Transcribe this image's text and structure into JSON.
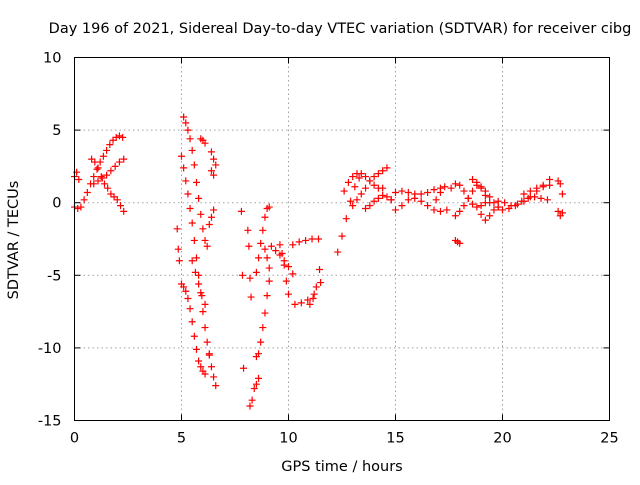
{
  "chart_data": {
    "type": "scatter",
    "title": "Day 196 of 2021, Sidereal Day-to-day VTEC variation (SDTVAR) for receiver cibg",
    "xlabel": "GPS time / hours",
    "ylabel": "SDTVAR / TECUs",
    "xlim": [
      0,
      25
    ],
    "ylim": [
      -15,
      10
    ],
    "xticks": [
      0,
      5,
      10,
      15,
      20,
      25
    ],
    "yticks": [
      -15,
      -10,
      -5,
      0,
      5,
      10
    ],
    "xtick_labels": [
      "0",
      "5",
      "10",
      "15",
      "20",
      "25"
    ],
    "ytick_labels": [
      "-15",
      "-10",
      "-5",
      "0",
      "5",
      "10"
    ],
    "grid": true,
    "marker": "+",
    "marker_color": "#ff0000",
    "segments": [
      {
        "name": "arc-a1",
        "x": [
          0.0,
          0.15,
          0.3,
          0.45,
          0.6,
          0.75,
          0.9,
          1.05,
          1.2,
          1.35,
          1.5,
          1.65,
          1.8,
          1.95,
          2.1,
          2.25
        ],
        "y": [
          -0.3,
          -0.4,
          -0.3,
          0.2,
          0.7,
          1.3,
          1.8,
          2.3,
          2.8,
          3.2,
          3.6,
          4.0,
          4.3,
          4.5,
          4.6,
          4.5
        ]
      },
      {
        "name": "arc-a2",
        "x": [
          0.0,
          0.1,
          0.2
        ],
        "y": [
          1.8,
          2.1,
          1.6
        ]
      },
      {
        "name": "arc-a3",
        "x": [
          0.8,
          0.95,
          1.1,
          1.25,
          1.4,
          1.55,
          1.7,
          1.85,
          2.0,
          2.15,
          2.3
        ],
        "y": [
          3.0,
          2.8,
          2.4,
          1.8,
          1.3,
          1.0,
          0.6,
          0.4,
          0.2,
          -0.2,
          -0.6
        ]
      },
      {
        "name": "arc-a4",
        "x": [
          0.9,
          1.1,
          1.3,
          1.5,
          1.7,
          1.9,
          2.1,
          2.3
        ],
        "y": [
          1.3,
          1.5,
          1.7,
          1.9,
          2.2,
          2.5,
          2.8,
          3.0
        ]
      },
      {
        "name": "arc-b1",
        "x": [
          4.8,
          4.85,
          4.9
        ],
        "y": [
          -1.8,
          -3.2,
          -4.0
        ]
      },
      {
        "name": "arc-b2",
        "x": [
          5.1,
          5.2,
          5.3,
          5.4,
          5.5,
          5.6,
          5.7,
          5.8,
          5.9,
          6.0,
          6.1,
          6.2
        ],
        "y": [
          5.9,
          5.5,
          5.0,
          4.4,
          3.6,
          2.6,
          1.4,
          0.3,
          -0.8,
          -1.8,
          -2.6,
          -3.0
        ]
      },
      {
        "name": "arc-b3",
        "x": [
          5.0,
          5.1,
          5.2,
          5.3,
          5.4,
          5.5,
          5.6,
          5.7,
          5.8,
          5.9,
          6.0,
          6.1,
          6.2,
          6.3
        ],
        "y": [
          3.2,
          2.4,
          1.5,
          0.6,
          -0.4,
          -1.4,
          -2.6,
          -3.8,
          -5.0,
          -6.2,
          -7.5,
          -8.6,
          -9.6,
          -10.4
        ]
      },
      {
        "name": "arc-b4",
        "x": [
          5.0,
          5.1,
          5.2,
          5.3,
          5.4,
          5.5,
          5.6,
          5.7,
          5.8,
          5.9,
          6.0,
          6.1
        ],
        "y": [
          -5.6,
          -5.8,
          -6.1,
          -6.6,
          -7.3,
          -8.2,
          -9.2,
          -10.1,
          -10.9,
          -11.3,
          -11.6,
          -11.8
        ]
      },
      {
        "name": "arc-b5",
        "x": [
          5.5,
          5.65,
          5.8,
          5.95,
          6.1
        ],
        "y": [
          -4.0,
          -4.8,
          -5.6,
          -6.4,
          -7.0
        ]
      },
      {
        "name": "arc-b6",
        "x": [
          6.3,
          6.4,
          6.5,
          6.6
        ],
        "y": [
          -10.5,
          -11.3,
          -12.0,
          -12.6
        ]
      },
      {
        "name": "arc-b7",
        "x": [
          5.9,
          6.0,
          6.1
        ],
        "y": [
          4.4,
          4.3,
          4.1
        ]
      },
      {
        "name": "arc-b8",
        "x": [
          6.4,
          6.5,
          6.6
        ],
        "y": [
          3.5,
          3.0,
          2.6
        ]
      },
      {
        "name": "arc-b9",
        "x": [
          6.4,
          6.5
        ],
        "y": [
          2.2,
          1.9
        ]
      },
      {
        "name": "arc-b10",
        "x": [
          6.3,
          6.4,
          6.5
        ],
        "y": [
          -1.5,
          -1.0,
          -0.5
        ]
      },
      {
        "name": "arc-c1",
        "x": [
          7.8,
          7.85,
          7.9
        ],
        "y": [
          -0.6,
          -5.0,
          -11.4
        ]
      },
      {
        "name": "arc-c2",
        "x": [
          8.1,
          8.15,
          8.2,
          8.25
        ],
        "y": [
          -1.9,
          -3.0,
          -5.2,
          -6.5
        ]
      },
      {
        "name": "arc-c3",
        "x": [
          8.2,
          8.3,
          8.4,
          8.5,
          8.6
        ],
        "y": [
          -14.0,
          -13.6,
          -12.8,
          -12.5,
          -12.1
        ]
      },
      {
        "name": "arc-c4",
        "x": [
          8.5,
          8.6,
          8.7,
          8.8,
          8.9,
          9.0,
          9.1
        ],
        "y": [
          -10.6,
          -10.4,
          -9.6,
          -8.6,
          -7.6,
          -6.4,
          -5.4
        ]
      },
      {
        "name": "arc-c5",
        "x": [
          8.5,
          8.6,
          8.7,
          8.8,
          8.9,
          9.0,
          9.1
        ],
        "y": [
          -4.8,
          -3.8,
          -2.8,
          -1.9,
          -1.0,
          -0.4,
          -0.3
        ]
      },
      {
        "name": "arc-c6",
        "x": [
          8.9,
          9.0,
          9.1
        ],
        "y": [
          -3.2,
          -3.8,
          -4.5
        ]
      },
      {
        "name": "arc-d1",
        "x": [
          9.2,
          9.4,
          9.6,
          9.8,
          10.0,
          10.2
        ],
        "y": [
          -3.0,
          -3.3,
          -3.6,
          -4.0,
          -4.4,
          -4.9
        ]
      },
      {
        "name": "arc-d2",
        "x": [
          9.6,
          9.7,
          9.8,
          9.9,
          10.0
        ],
        "y": [
          -2.9,
          -3.5,
          -4.3,
          -5.4,
          -6.3
        ]
      },
      {
        "name": "arc-d3",
        "x": [
          10.2,
          10.5,
          10.8,
          11.1,
          11.4
        ],
        "y": [
          -2.9,
          -2.7,
          -2.6,
          -2.5,
          -2.5
        ]
      },
      {
        "name": "arc-d4",
        "x": [
          10.3,
          10.6,
          10.9,
          11.2,
          11.5
        ],
        "y": [
          -7.0,
          -6.9,
          -6.7,
          -6.3,
          -5.5
        ]
      },
      {
        "name": "arc-d5",
        "x": [
          11.0,
          11.15,
          11.3,
          11.45
        ],
        "y": [
          -7.0,
          -6.6,
          -5.8,
          -4.6
        ]
      },
      {
        "name": "arc-e1",
        "x": [
          12.3,
          12.5,
          12.7,
          12.9,
          13.1,
          13.3
        ],
        "y": [
          -3.4,
          -2.3,
          -1.1,
          0.1,
          1.1,
          1.7
        ]
      },
      {
        "name": "arc-e2",
        "x": [
          12.6,
          12.8,
          13.0,
          13.2,
          13.4,
          13.6,
          13.8,
          14.0,
          14.2,
          14.4
        ],
        "y": [
          0.8,
          1.4,
          1.8,
          2.0,
          2.0,
          1.8,
          1.5,
          1.2,
          1.0,
          1.0
        ]
      },
      {
        "name": "arc-e3",
        "x": [
          13.0,
          13.2,
          13.4,
          13.6,
          13.8,
          14.0,
          14.2,
          14.4,
          14.6
        ],
        "y": [
          -0.2,
          0.2,
          0.6,
          1.0,
          1.5,
          1.8,
          2.0,
          2.2,
          2.4
        ]
      },
      {
        "name": "arc-e4",
        "x": [
          13.6,
          13.8,
          14.0,
          14.2,
          14.4,
          14.6,
          14.8
        ],
        "y": [
          -0.4,
          -0.2,
          0.1,
          0.3,
          0.5,
          0.4,
          0.2
        ]
      },
      {
        "name": "arc-f1",
        "x": [
          14.8,
          15.0,
          15.3,
          15.6,
          15.9,
          16.2,
          16.5,
          16.8,
          17.1
        ],
        "y": [
          0.2,
          0.7,
          0.8,
          0.7,
          0.6,
          0.6,
          0.7,
          0.9,
          1.0
        ]
      },
      {
        "name": "arc-f2",
        "x": [
          15.0,
          15.3,
          15.6,
          15.9,
          16.2,
          16.5,
          16.8,
          17.1,
          17.4
        ],
        "y": [
          -0.5,
          -0.2,
          0.2,
          0.3,
          0.1,
          -0.2,
          -0.5,
          -0.6,
          -0.5
        ]
      },
      {
        "name": "arc-f3",
        "x": [
          16.9,
          17.1,
          17.3
        ],
        "y": [
          0.2,
          0.7,
          1.1
        ]
      },
      {
        "name": "arc-f4",
        "x": [
          17.8,
          17.9,
          18.0
        ],
        "y": [
          -2.6,
          -2.7,
          -2.8
        ]
      },
      {
        "name": "arc-g1",
        "x": [
          17.6,
          17.8,
          18.0,
          18.2,
          18.4,
          18.6,
          18.8,
          19.0,
          19.2
        ],
        "y": [
          1.0,
          1.3,
          1.2,
          0.8,
          0.3,
          -0.1,
          -0.3,
          -0.2,
          0.0
        ]
      },
      {
        "name": "arc-g2",
        "x": [
          17.8,
          18.0,
          18.2,
          18.4,
          18.6,
          18.8,
          19.0,
          19.2,
          19.4,
          19.6,
          19.8
        ],
        "y": [
          -0.9,
          -0.6,
          -0.2,
          0.3,
          0.8,
          1.2,
          1.1,
          0.8,
          0.4,
          0.0,
          -0.3
        ]
      },
      {
        "name": "arc-g3",
        "x": [
          18.6,
          18.8,
          19.0,
          19.2,
          19.4
        ],
        "y": [
          1.6,
          1.4,
          1.0,
          0.5,
          0.0
        ]
      },
      {
        "name": "arc-g4",
        "x": [
          19.0,
          19.2,
          19.4,
          19.6,
          19.8
        ],
        "y": [
          -0.8,
          -1.2,
          -0.9,
          -0.5,
          -0.3
        ]
      },
      {
        "name": "arc-h1",
        "x": [
          19.8,
          20.1,
          20.4,
          20.7,
          21.0,
          21.3,
          21.6,
          21.9,
          22.2
        ],
        "y": [
          0.1,
          0.0,
          -0.2,
          -0.1,
          0.1,
          0.4,
          0.8,
          1.2,
          1.6
        ]
      },
      {
        "name": "arc-h2",
        "x": [
          20.0,
          20.3,
          20.6,
          20.9,
          21.2,
          21.5,
          21.8,
          22.1
        ],
        "y": [
          -0.5,
          -0.4,
          -0.2,
          0.1,
          0.3,
          0.4,
          0.3,
          0.2
        ]
      },
      {
        "name": "arc-h3",
        "x": [
          21.0,
          21.3,
          21.6,
          21.9,
          22.2
        ],
        "y": [
          0.6,
          0.8,
          1.0,
          1.1,
          1.2
        ]
      },
      {
        "name": "arc-h4",
        "x": [
          22.6,
          22.7,
          22.8
        ],
        "y": [
          1.5,
          1.3,
          0.6
        ]
      },
      {
        "name": "arc-h5",
        "x": [
          22.6,
          22.7,
          22.8
        ],
        "y": [
          -0.6,
          -0.9,
          -0.7
        ]
      }
    ]
  }
}
